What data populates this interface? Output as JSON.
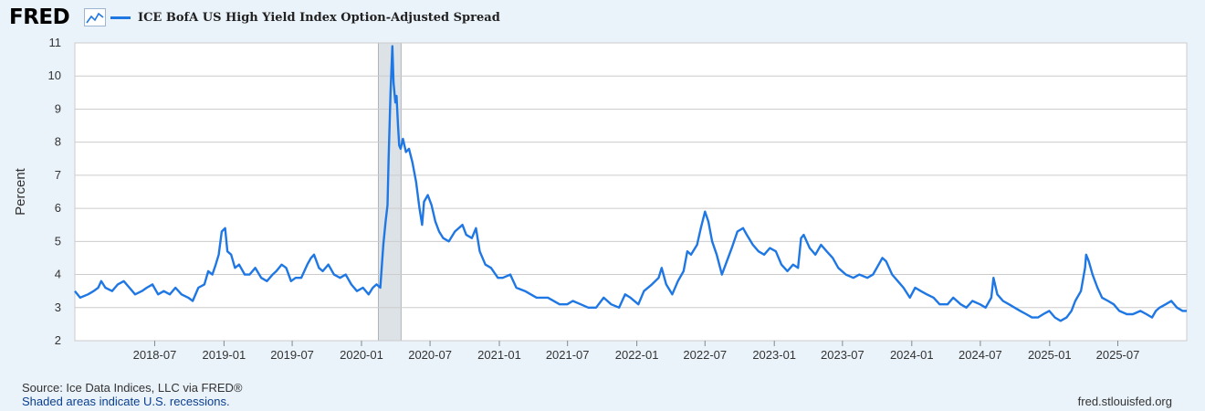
{
  "header": {
    "logo_text": "FRED",
    "logo_icon": "line-chart-icon",
    "legend_label": "ICE BofA US High Yield Index Option-Adjusted Spread"
  },
  "footer": {
    "source": "Source: Ice Data Indices, LLC via FRED®",
    "shaded_note": "Shaded areas indicate U.S. recessions.",
    "url": "fred.stlouisfed.org"
  },
  "colors": {
    "series": "#1f77e4",
    "recession": "#dde2e7",
    "background": "#eaf2fa",
    "plot_background": "#ffffff",
    "grid": "#cccccc"
  },
  "chart_data": {
    "type": "line",
    "title": "",
    "xlabel": "",
    "ylabel": "Percent",
    "ylim": [
      2,
      11
    ],
    "xlim": [
      "2017-12-01",
      "2025-12-31"
    ],
    "grid": true,
    "legend_position": "top-left",
    "y_ticks": [
      2,
      3,
      4,
      5,
      6,
      7,
      8,
      9,
      10,
      11
    ],
    "x_ticks": [
      "2018-07",
      "2019-01",
      "2019-07",
      "2020-01",
      "2020-07",
      "2021-01",
      "2021-07",
      "2022-01",
      "2022-07",
      "2023-01",
      "2023-07",
      "2024-01",
      "2024-07",
      "2025-01",
      "2025-07"
    ],
    "recessions": [
      {
        "start": "2020-02-15",
        "end": "2020-04-15"
      }
    ],
    "series": [
      {
        "name": "ICE BofA US High Yield Index Option-Adjusted Spread",
        "points": [
          [
            "2017-12-01",
            3.5
          ],
          [
            "2017-12-15",
            3.3
          ],
          [
            "2018-01-05",
            3.4
          ],
          [
            "2018-01-20",
            3.5
          ],
          [
            "2018-02-01",
            3.6
          ],
          [
            "2018-02-09",
            3.8
          ],
          [
            "2018-02-20",
            3.6
          ],
          [
            "2018-03-10",
            3.5
          ],
          [
            "2018-03-25",
            3.7
          ],
          [
            "2018-04-10",
            3.8
          ],
          [
            "2018-04-25",
            3.6
          ],
          [
            "2018-05-10",
            3.4
          ],
          [
            "2018-05-28",
            3.5
          ],
          [
            "2018-06-10",
            3.6
          ],
          [
            "2018-06-25",
            3.7
          ],
          [
            "2018-07-10",
            3.4
          ],
          [
            "2018-07-25",
            3.5
          ],
          [
            "2018-08-10",
            3.4
          ],
          [
            "2018-08-25",
            3.6
          ],
          [
            "2018-09-10",
            3.4
          ],
          [
            "2018-09-28",
            3.3
          ],
          [
            "2018-10-10",
            3.2
          ],
          [
            "2018-10-25",
            3.6
          ],
          [
            "2018-11-10",
            3.7
          ],
          [
            "2018-11-20",
            4.1
          ],
          [
            "2018-12-01",
            4.0
          ],
          [
            "2018-12-10",
            4.3
          ],
          [
            "2018-12-18",
            4.6
          ],
          [
            "2018-12-26",
            5.3
          ],
          [
            "2019-01-04",
            5.4
          ],
          [
            "2019-01-10",
            4.7
          ],
          [
            "2019-01-20",
            4.6
          ],
          [
            "2019-01-30",
            4.2
          ],
          [
            "2019-02-10",
            4.3
          ],
          [
            "2019-02-25",
            4.0
          ],
          [
            "2019-03-10",
            4.0
          ],
          [
            "2019-03-25",
            4.2
          ],
          [
            "2019-04-10",
            3.9
          ],
          [
            "2019-04-25",
            3.8
          ],
          [
            "2019-05-10",
            4.0
          ],
          [
            "2019-05-20",
            4.1
          ],
          [
            "2019-06-03",
            4.3
          ],
          [
            "2019-06-15",
            4.2
          ],
          [
            "2019-06-28",
            3.8
          ],
          [
            "2019-07-10",
            3.9
          ],
          [
            "2019-07-25",
            3.9
          ],
          [
            "2019-08-10",
            4.3
          ],
          [
            "2019-08-20",
            4.5
          ],
          [
            "2019-08-28",
            4.6
          ],
          [
            "2019-09-10",
            4.2
          ],
          [
            "2019-09-20",
            4.1
          ],
          [
            "2019-10-05",
            4.3
          ],
          [
            "2019-10-20",
            4.0
          ],
          [
            "2019-11-05",
            3.9
          ],
          [
            "2019-11-20",
            4.0
          ],
          [
            "2019-12-05",
            3.7
          ],
          [
            "2019-12-20",
            3.5
          ],
          [
            "2020-01-05",
            3.6
          ],
          [
            "2020-01-20",
            3.4
          ],
          [
            "2020-01-31",
            3.6
          ],
          [
            "2020-02-10",
            3.7
          ],
          [
            "2020-02-20",
            3.6
          ],
          [
            "2020-02-28",
            4.9
          ],
          [
            "2020-03-05",
            5.6
          ],
          [
            "2020-03-10",
            6.1
          ],
          [
            "2020-03-13",
            7.5
          ],
          [
            "2020-03-18",
            9.5
          ],
          [
            "2020-03-23",
            10.9
          ],
          [
            "2020-03-26",
            9.8
          ],
          [
            "2020-03-31",
            9.2
          ],
          [
            "2020-04-03",
            9.4
          ],
          [
            "2020-04-07",
            8.5
          ],
          [
            "2020-04-10",
            7.9
          ],
          [
            "2020-04-14",
            7.8
          ],
          [
            "2020-04-20",
            8.1
          ],
          [
            "2020-04-28",
            7.7
          ],
          [
            "2020-05-06",
            7.8
          ],
          [
            "2020-05-15",
            7.4
          ],
          [
            "2020-05-25",
            6.8
          ],
          [
            "2020-06-03",
            6.0
          ],
          [
            "2020-06-10",
            5.5
          ],
          [
            "2020-06-15",
            6.2
          ],
          [
            "2020-06-25",
            6.4
          ],
          [
            "2020-07-05",
            6.1
          ],
          [
            "2020-07-15",
            5.6
          ],
          [
            "2020-07-25",
            5.3
          ],
          [
            "2020-08-05",
            5.1
          ],
          [
            "2020-08-20",
            5.0
          ],
          [
            "2020-09-05",
            5.3
          ],
          [
            "2020-09-25",
            5.5
          ],
          [
            "2020-10-05",
            5.2
          ],
          [
            "2020-10-20",
            5.1
          ],
          [
            "2020-10-31",
            5.4
          ],
          [
            "2020-11-10",
            4.7
          ],
          [
            "2020-11-25",
            4.3
          ],
          [
            "2020-12-10",
            4.2
          ],
          [
            "2020-12-28",
            3.9
          ],
          [
            "2021-01-10",
            3.9
          ],
          [
            "2021-01-30",
            4.0
          ],
          [
            "2021-02-15",
            3.6
          ],
          [
            "2021-03-10",
            3.5
          ],
          [
            "2021-04-10",
            3.3
          ],
          [
            "2021-05-10",
            3.3
          ],
          [
            "2021-06-10",
            3.1
          ],
          [
            "2021-06-30",
            3.1
          ],
          [
            "2021-07-15",
            3.2
          ],
          [
            "2021-08-05",
            3.1
          ],
          [
            "2021-08-25",
            3.0
          ],
          [
            "2021-09-15",
            3.0
          ],
          [
            "2021-10-05",
            3.3
          ],
          [
            "2021-10-25",
            3.1
          ],
          [
            "2021-11-15",
            3.0
          ],
          [
            "2021-12-01",
            3.4
          ],
          [
            "2021-12-15",
            3.3
          ],
          [
            "2022-01-05",
            3.1
          ],
          [
            "2022-01-20",
            3.5
          ],
          [
            "2022-02-10",
            3.7
          ],
          [
            "2022-02-28",
            3.9
          ],
          [
            "2022-03-08",
            4.2
          ],
          [
            "2022-03-20",
            3.7
          ],
          [
            "2022-04-05",
            3.4
          ],
          [
            "2022-04-20",
            3.8
          ],
          [
            "2022-05-05",
            4.1
          ],
          [
            "2022-05-15",
            4.7
          ],
          [
            "2022-05-25",
            4.6
          ],
          [
            "2022-06-10",
            4.9
          ],
          [
            "2022-06-20",
            5.4
          ],
          [
            "2022-07-01",
            5.9
          ],
          [
            "2022-07-10",
            5.6
          ],
          [
            "2022-07-20",
            5.0
          ],
          [
            "2022-08-01",
            4.6
          ],
          [
            "2022-08-15",
            4.0
          ],
          [
            "2022-08-28",
            4.4
          ],
          [
            "2022-09-10",
            4.8
          ],
          [
            "2022-09-25",
            5.3
          ],
          [
            "2022-10-10",
            5.4
          ],
          [
            "2022-10-20",
            5.2
          ],
          [
            "2022-11-05",
            4.9
          ],
          [
            "2022-11-20",
            4.7
          ],
          [
            "2022-12-05",
            4.6
          ],
          [
            "2022-12-20",
            4.8
          ],
          [
            "2023-01-05",
            4.7
          ],
          [
            "2023-01-20",
            4.3
          ],
          [
            "2023-02-05",
            4.1
          ],
          [
            "2023-02-20",
            4.3
          ],
          [
            "2023-03-05",
            4.2
          ],
          [
            "2023-03-13",
            5.1
          ],
          [
            "2023-03-20",
            5.2
          ],
          [
            "2023-04-05",
            4.8
          ],
          [
            "2023-04-20",
            4.6
          ],
          [
            "2023-05-05",
            4.9
          ],
          [
            "2023-05-20",
            4.7
          ],
          [
            "2023-06-05",
            4.5
          ],
          [
            "2023-06-20",
            4.2
          ],
          [
            "2023-07-10",
            4.0
          ],
          [
            "2023-07-30",
            3.9
          ],
          [
            "2023-08-15",
            4.0
          ],
          [
            "2023-09-05",
            3.9
          ],
          [
            "2023-09-20",
            4.0
          ],
          [
            "2023-10-05",
            4.3
          ],
          [
            "2023-10-15",
            4.5
          ],
          [
            "2023-10-25",
            4.4
          ],
          [
            "2023-11-10",
            4.0
          ],
          [
            "2023-11-25",
            3.8
          ],
          [
            "2023-12-10",
            3.6
          ],
          [
            "2023-12-27",
            3.3
          ],
          [
            "2024-01-10",
            3.6
          ],
          [
            "2024-01-25",
            3.5
          ],
          [
            "2024-02-10",
            3.4
          ],
          [
            "2024-02-28",
            3.3
          ],
          [
            "2024-03-15",
            3.1
          ],
          [
            "2024-04-05",
            3.1
          ],
          [
            "2024-04-20",
            3.3
          ],
          [
            "2024-05-10",
            3.1
          ],
          [
            "2024-05-25",
            3.0
          ],
          [
            "2024-06-10",
            3.2
          ],
          [
            "2024-06-30",
            3.1
          ],
          [
            "2024-07-15",
            3.0
          ],
          [
            "2024-07-30",
            3.3
          ],
          [
            "2024-08-05",
            3.9
          ],
          [
            "2024-08-15",
            3.4
          ],
          [
            "2024-08-30",
            3.2
          ],
          [
            "2024-09-15",
            3.1
          ],
          [
            "2024-09-30",
            3.0
          ],
          [
            "2024-10-15",
            2.9
          ],
          [
            "2024-10-31",
            2.8
          ],
          [
            "2024-11-15",
            2.7
          ],
          [
            "2024-12-01",
            2.7
          ],
          [
            "2024-12-15",
            2.8
          ],
          [
            "2024-12-31",
            2.9
          ],
          [
            "2025-01-15",
            2.7
          ],
          [
            "2025-01-30",
            2.6
          ],
          [
            "2025-02-15",
            2.7
          ],
          [
            "2025-02-28",
            2.9
          ],
          [
            "2025-03-10",
            3.2
          ],
          [
            "2025-03-25",
            3.5
          ],
          [
            "2025-04-05",
            4.2
          ],
          [
            "2025-04-08",
            4.6
          ],
          [
            "2025-04-15",
            4.4
          ],
          [
            "2025-04-25",
            4.0
          ],
          [
            "2025-05-08",
            3.6
          ],
          [
            "2025-05-20",
            3.3
          ],
          [
            "2025-06-05",
            3.2
          ],
          [
            "2025-06-20",
            3.1
          ],
          [
            "2025-07-05",
            2.9
          ],
          [
            "2025-07-25",
            2.8
          ],
          [
            "2025-08-10",
            2.8
          ],
          [
            "2025-08-30",
            2.9
          ],
          [
            "2025-09-15",
            2.8
          ],
          [
            "2025-09-30",
            2.7
          ],
          [
            "2025-10-10",
            2.9
          ],
          [
            "2025-10-20",
            3.0
          ],
          [
            "2025-11-05",
            3.1
          ],
          [
            "2025-11-20",
            3.2
          ],
          [
            "2025-12-05",
            3.0
          ],
          [
            "2025-12-20",
            2.9
          ],
          [
            "2025-12-31",
            2.9
          ]
        ]
      }
    ]
  }
}
